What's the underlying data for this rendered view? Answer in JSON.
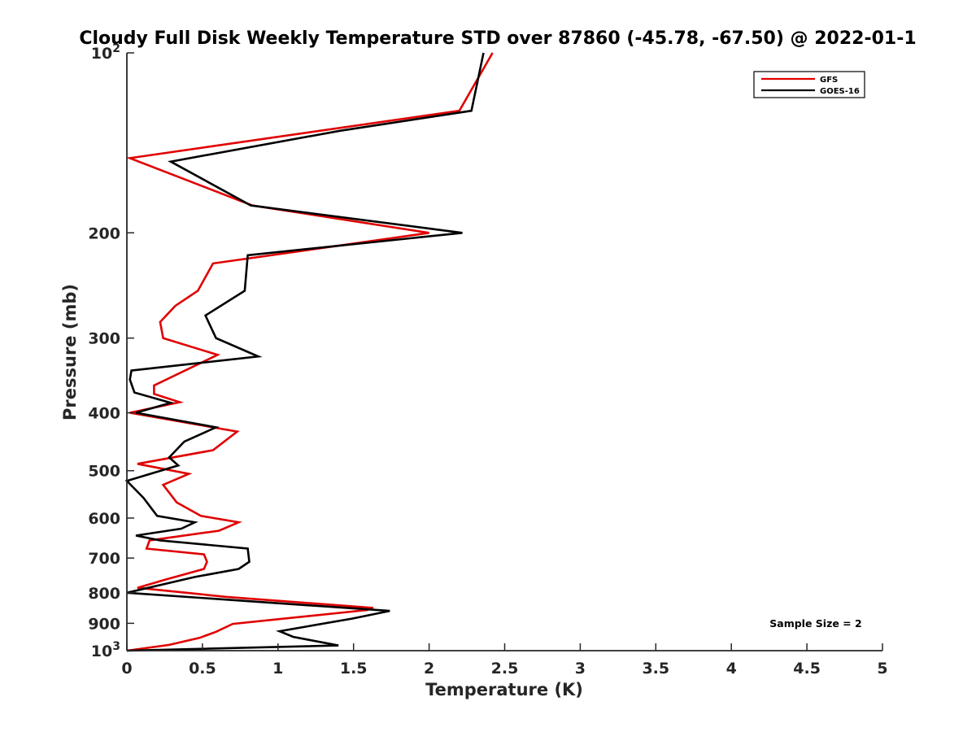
{
  "chart_data": {
    "type": "line",
    "title": "Cloudy Full Disk Weekly Temperature STD over 87860 (-45.78, -67.50) @ 2022-01-1",
    "xlabel": "Temperature (K)",
    "ylabel": "Pressure (mb)",
    "xlim": [
      0,
      5
    ],
    "ylim": [
      100,
      1000
    ],
    "y_scale": "log",
    "y_reversed": true,
    "x_ticks": [
      "0",
      "0.5",
      "1",
      "1.5",
      "2",
      "2.5",
      "3",
      "3.5",
      "4",
      "4.5",
      "5"
    ],
    "y_ticks": [
      {
        "value": 100,
        "base": "10",
        "exp": "2"
      },
      {
        "value": 200,
        "label": "200"
      },
      {
        "value": 300,
        "label": "300"
      },
      {
        "value": 400,
        "label": "400"
      },
      {
        "value": 500,
        "label": "500"
      },
      {
        "value": 600,
        "label": "600"
      },
      {
        "value": 700,
        "label": "700"
      },
      {
        "value": 800,
        "label": "800"
      },
      {
        "value": 900,
        "label": "900"
      },
      {
        "value": 1000,
        "base": "10",
        "exp": "3"
      }
    ],
    "grid": false,
    "legend_position": "top-right",
    "series": [
      {
        "name": "GFS",
        "color": "#e00000",
        "points": [
          [
            2.42,
            100
          ],
          [
            2.2,
            125
          ],
          [
            0.02,
            150
          ],
          [
            0.83,
            180
          ],
          [
            2.0,
            200
          ],
          [
            0.57,
            225
          ],
          [
            0.47,
            250
          ],
          [
            0.32,
            265
          ],
          [
            0.22,
            282
          ],
          [
            0.24,
            300
          ],
          [
            0.6,
            320
          ],
          [
            0.18,
            360
          ],
          [
            0.18,
            372
          ],
          [
            0.35,
            384
          ],
          [
            0.02,
            400
          ],
          [
            0.73,
            430
          ],
          [
            0.57,
            462
          ],
          [
            0.07,
            487
          ],
          [
            0.41,
            506
          ],
          [
            0.24,
            528
          ],
          [
            0.33,
            565
          ],
          [
            0.49,
            595
          ],
          [
            0.74,
            610
          ],
          [
            0.61,
            630
          ],
          [
            0.15,
            654
          ],
          [
            0.13,
            675
          ],
          [
            0.51,
            690
          ],
          [
            0.53,
            710
          ],
          [
            0.51,
            730
          ],
          [
            0.26,
            760
          ],
          [
            0.07,
            785
          ],
          [
            0.66,
            813
          ],
          [
            1.63,
            848
          ],
          [
            1.59,
            855
          ],
          [
            0.7,
            902
          ],
          [
            0.59,
            930
          ],
          [
            0.48,
            952
          ],
          [
            0.28,
            978
          ],
          [
            0.0,
            1000
          ]
        ]
      },
      {
        "name": "GOES-16",
        "color": "#000000",
        "points": [
          [
            2.36,
            100
          ],
          [
            2.28,
            125
          ],
          [
            1.41,
            135
          ],
          [
            0.29,
            152
          ],
          [
            0.82,
            180
          ],
          [
            2.22,
            200
          ],
          [
            0.8,
            218
          ],
          [
            0.78,
            250
          ],
          [
            0.52,
            275
          ],
          [
            0.59,
            300
          ],
          [
            0.87,
            322
          ],
          [
            0.03,
            340
          ],
          [
            0.02,
            352
          ],
          [
            0.05,
            370
          ],
          [
            0.29,
            385
          ],
          [
            0.06,
            400
          ],
          [
            0.59,
            423
          ],
          [
            0.38,
            447
          ],
          [
            0.28,
            475
          ],
          [
            0.34,
            490
          ],
          [
            0.0,
            520
          ],
          [
            0.11,
            555
          ],
          [
            0.2,
            595
          ],
          [
            0.45,
            610
          ],
          [
            0.36,
            625
          ],
          [
            0.06,
            642
          ],
          [
            0.22,
            654
          ],
          [
            0.8,
            675
          ],
          [
            0.81,
            710
          ],
          [
            0.74,
            730
          ],
          [
            0.45,
            753
          ],
          [
            0.0,
            800
          ],
          [
            1.74,
            858
          ],
          [
            1.49,
            884
          ],
          [
            1.01,
            928
          ],
          [
            1.1,
            948
          ],
          [
            1.36,
            976
          ],
          [
            1.4,
            980
          ],
          [
            0.0,
            1000
          ]
        ]
      }
    ],
    "annotations": [
      {
        "text": "Sample Size = 2"
      }
    ]
  }
}
